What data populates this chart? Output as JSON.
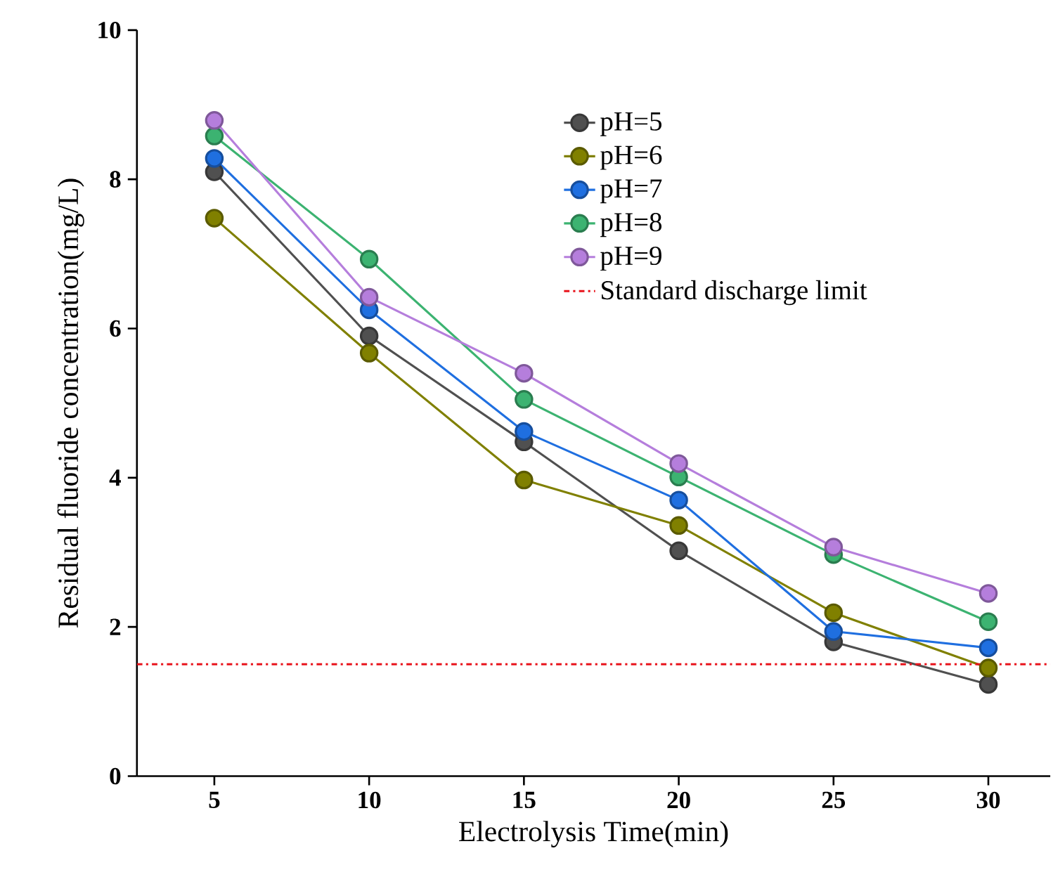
{
  "chart_data": {
    "type": "line",
    "xlabel": "Electrolysis Time(min)",
    "ylabel": "Residual fluoride concentration(mg/L)",
    "x": [
      5,
      10,
      15,
      20,
      25,
      30
    ],
    "xlim": [
      2.5,
      32
    ],
    "xticks": [
      5,
      10,
      15,
      20,
      25,
      30
    ],
    "ylim": [
      0,
      10
    ],
    "yticks": [
      0,
      2,
      4,
      6,
      8,
      10
    ],
    "series": [
      {
        "name": "pH=5",
        "color": "#505050",
        "values": [
          8.1,
          5.9,
          4.48,
          3.02,
          1.8,
          1.23
        ]
      },
      {
        "name": "pH=6",
        "color": "#808000",
        "values": [
          7.48,
          5.67,
          3.97,
          3.36,
          2.19,
          1.45
        ]
      },
      {
        "name": "pH=7",
        "color": "#1f6fe0",
        "values": [
          8.28,
          6.25,
          4.62,
          3.7,
          1.94,
          1.72
        ]
      },
      {
        "name": "pH=8",
        "color": "#3cb371",
        "values": [
          8.58,
          6.93,
          5.05,
          4.01,
          2.97,
          2.07
        ]
      },
      {
        "name": "pH=9",
        "color": "#b57edc",
        "values": [
          8.79,
          6.42,
          5.4,
          4.19,
          3.07,
          2.45
        ]
      }
    ],
    "ref_lines": [
      {
        "axis": "y",
        "value": 1.5,
        "label": "Standard discharge limit",
        "color": "#e8141c",
        "line_style": "dashdot"
      }
    ],
    "marker": "circle",
    "line_style": "solid",
    "legend": "top right",
    "grid": false
  }
}
